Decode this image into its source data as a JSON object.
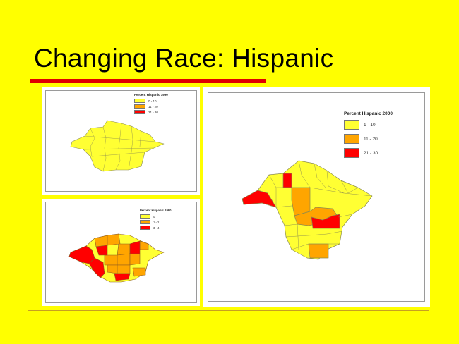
{
  "slide": {
    "title": "Changing Race: Hispanic"
  },
  "colors": {
    "background": "#FFFF00",
    "accent_rule": "#E00000",
    "class_low": "#FFFF33",
    "class_mid": "#FFA500",
    "class_high": "#FF0000"
  },
  "maps": [
    {
      "name": "map-1990-a",
      "legend": {
        "title": "Percent Hispanic 1990",
        "classes": [
          {
            "label": "0 - 10",
            "color": "#FFFF33"
          },
          {
            "label": "11 - 20",
            "color": "#FFA500"
          },
          {
            "label": "21 - 30",
            "color": "#FF0000"
          }
        ]
      }
    },
    {
      "name": "map-1990-b",
      "legend": {
        "title": "Percent Hispanic 1990",
        "classes": [
          {
            "label": "0",
            "color": "#FFFF33"
          },
          {
            "label": "1 - 2",
            "color": "#FFA500"
          },
          {
            "label": "3 - 4",
            "color": "#FF0000"
          }
        ]
      }
    },
    {
      "name": "map-2000",
      "legend": {
        "title": "Percent Hispanic 2000",
        "classes": [
          {
            "label": "1 - 10",
            "color": "#FFFF33"
          },
          {
            "label": "11 - 20",
            "color": "#FFA500"
          },
          {
            "label": "21 - 30",
            "color": "#FF0000"
          }
        ]
      }
    }
  ]
}
